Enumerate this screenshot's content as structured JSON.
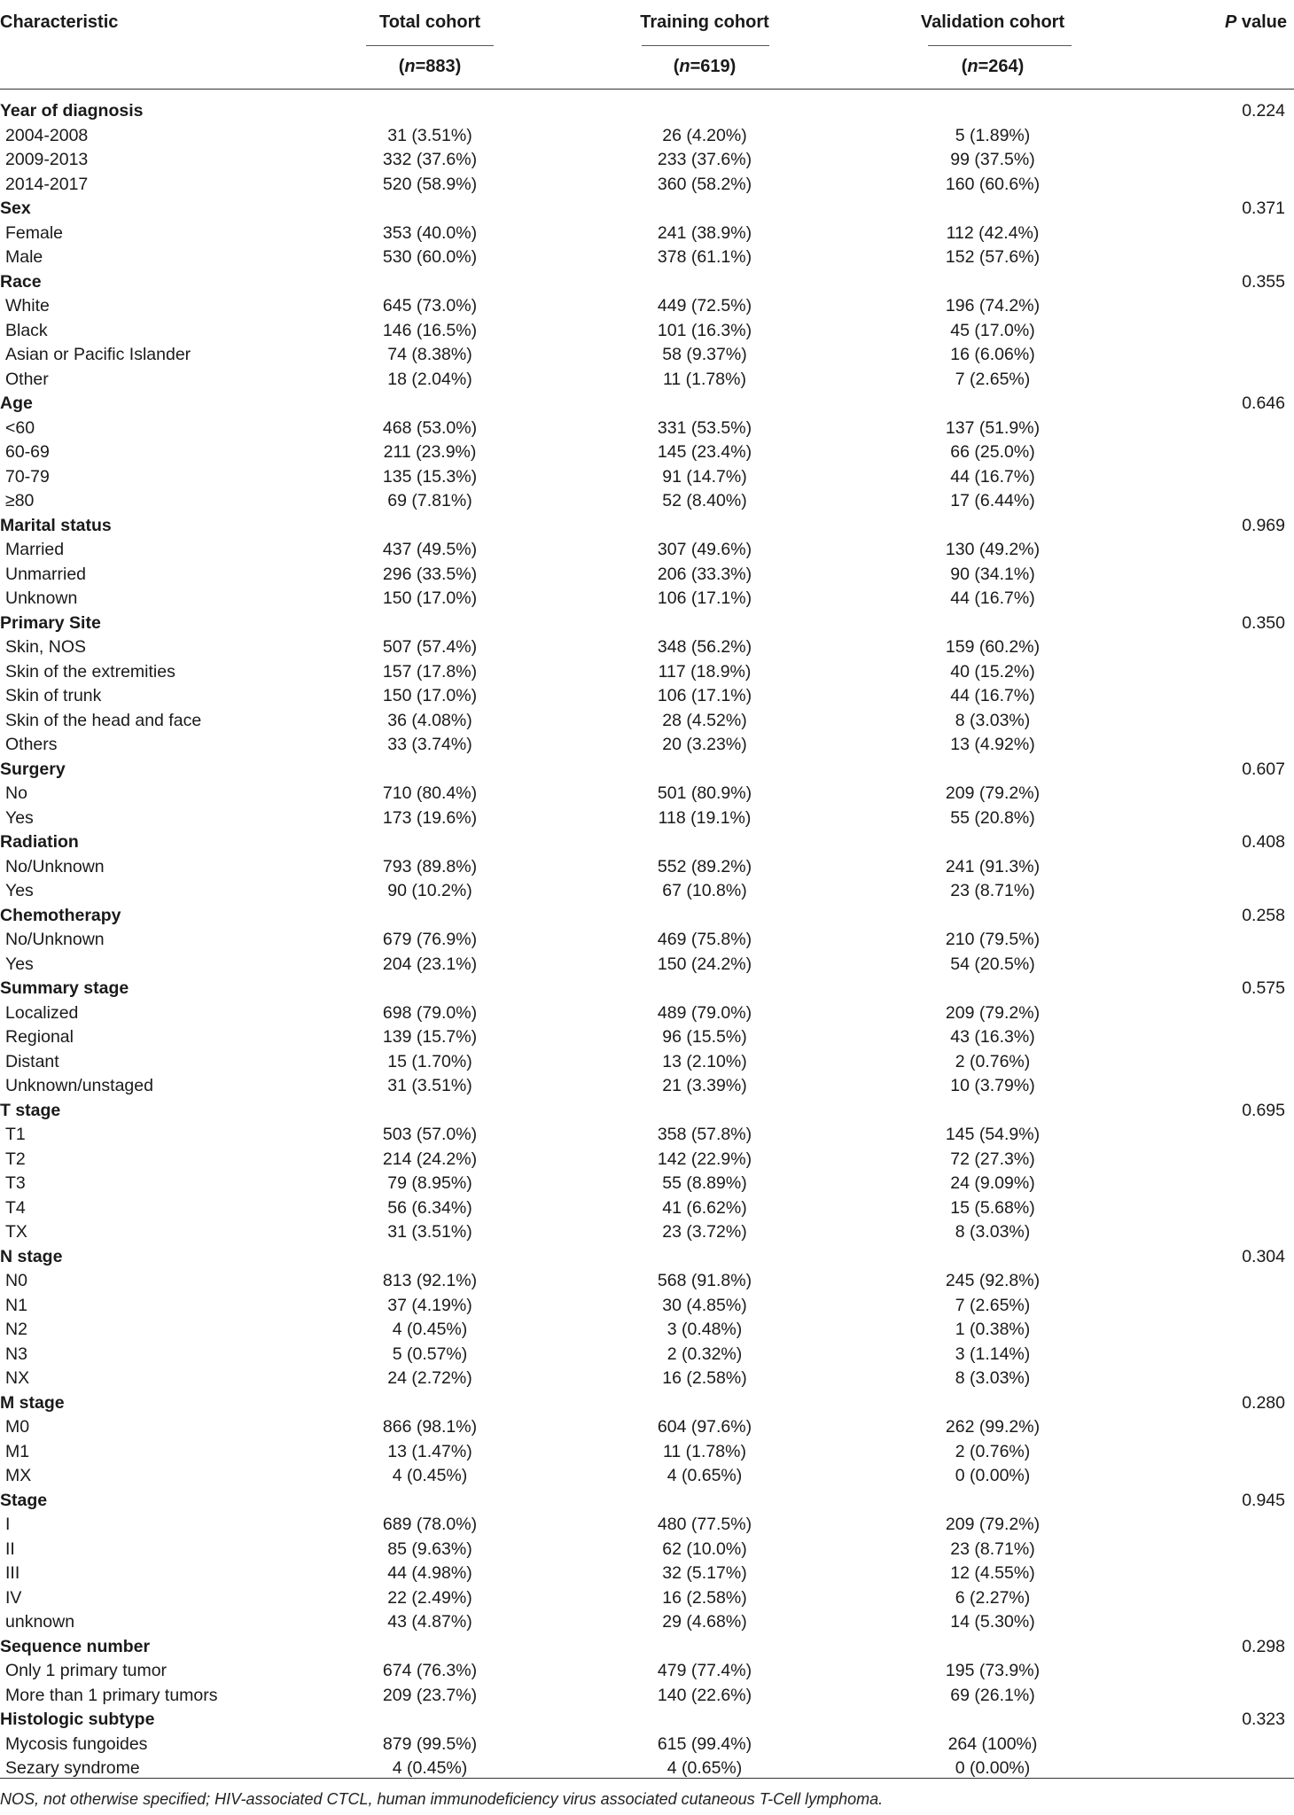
{
  "header": {
    "characteristic": "Characteristic",
    "total": "Total cohort",
    "training": "Training cohort",
    "validation": "Validation cohort",
    "p_italic": "P",
    "p_rest": " value",
    "n_total": "(n=883)",
    "n_training": "(n=619)",
    "n_validation": "(n=264)"
  },
  "rows": [
    {
      "type": "group",
      "label": "Year of diagnosis",
      "p": "0.224"
    },
    {
      "type": "sub",
      "label": "2004-2008",
      "total": "31 (3.51%)",
      "training": "26 (4.20%)",
      "validation": "5 (1.89%)"
    },
    {
      "type": "sub",
      "label": "2009-2013",
      "total": "332 (37.6%)",
      "training": "233 (37.6%)",
      "validation": "99 (37.5%)"
    },
    {
      "type": "sub",
      "label": "2014-2017",
      "total": "520 (58.9%)",
      "training": "360 (58.2%)",
      "validation": "160 (60.6%)"
    },
    {
      "type": "group",
      "label": "Sex",
      "p": "0.371"
    },
    {
      "type": "sub",
      "label": "Female",
      "total": "353 (40.0%)",
      "training": "241 (38.9%)",
      "validation": "112 (42.4%)"
    },
    {
      "type": "sub",
      "label": "Male",
      "total": "530 (60.0%)",
      "training": "378 (61.1%)",
      "validation": "152 (57.6%)"
    },
    {
      "type": "group",
      "label": "Race",
      "p": "0.355"
    },
    {
      "type": "sub",
      "label": "White",
      "total": "645 (73.0%)",
      "training": "449 (72.5%)",
      "validation": "196 (74.2%)"
    },
    {
      "type": "sub",
      "label": "Black",
      "total": "146 (16.5%)",
      "training": "101 (16.3%)",
      "validation": "45 (17.0%)"
    },
    {
      "type": "sub",
      "label": "Asian or Pacific Islander",
      "total": "74 (8.38%)",
      "training": "58 (9.37%)",
      "validation": "16 (6.06%)"
    },
    {
      "type": "sub",
      "label": "Other",
      "total": "18 (2.04%)",
      "training": "11 (1.78%)",
      "validation": "7 (2.65%)"
    },
    {
      "type": "group",
      "label": "Age",
      "p": "0.646"
    },
    {
      "type": "sub",
      "label": "<60",
      "total": "468 (53.0%)",
      "training": "331 (53.5%)",
      "validation": "137 (51.9%)"
    },
    {
      "type": "sub",
      "label": "60-69",
      "total": "211 (23.9%)",
      "training": "145 (23.4%)",
      "validation": "66 (25.0%)"
    },
    {
      "type": "sub",
      "label": "70-79",
      "total": "135 (15.3%)",
      "training": "91 (14.7%)",
      "validation": "44 (16.7%)"
    },
    {
      "type": "sub",
      "label": "≥80",
      "total": "69 (7.81%)",
      "training": "52 (8.40%)",
      "validation": "17 (6.44%)"
    },
    {
      "type": "group",
      "label": "Marital status",
      "p": "0.969"
    },
    {
      "type": "sub",
      "label": "Married",
      "total": "437 (49.5%)",
      "training": "307 (49.6%)",
      "validation": "130 (49.2%)"
    },
    {
      "type": "sub",
      "label": "Unmarried",
      "total": "296 (33.5%)",
      "training": "206 (33.3%)",
      "validation": "90 (34.1%)"
    },
    {
      "type": "sub",
      "label": "Unknown",
      "total": "150 (17.0%)",
      "training": "106 (17.1%)",
      "validation": "44 (16.7%)"
    },
    {
      "type": "group",
      "label": "Primary Site",
      "p": "0.350"
    },
    {
      "type": "sub",
      "label": "Skin, NOS",
      "total": "507 (57.4%)",
      "training": "348 (56.2%)",
      "validation": "159 (60.2%)"
    },
    {
      "type": "sub",
      "label": "Skin of the extremities",
      "total": "157 (17.8%)",
      "training": "117 (18.9%)",
      "validation": "40 (15.2%)"
    },
    {
      "type": "sub",
      "label": "Skin of trunk",
      "total": "150 (17.0%)",
      "training": "106 (17.1%)",
      "validation": "44 (16.7%)"
    },
    {
      "type": "sub",
      "label": "Skin of the head and face",
      "total": "36 (4.08%)",
      "training": "28 (4.52%)",
      "validation": "8 (3.03%)"
    },
    {
      "type": "sub",
      "label": "Others",
      "total": "33 (3.74%)",
      "training": "20 (3.23%)",
      "validation": "13 (4.92%)"
    },
    {
      "type": "group",
      "label": "Surgery",
      "p": "0.607"
    },
    {
      "type": "sub",
      "label": "No",
      "total": "710 (80.4%)",
      "training": "501 (80.9%)",
      "validation": "209 (79.2%)"
    },
    {
      "type": "sub",
      "label": "Yes",
      "total": "173 (19.6%)",
      "training": "118 (19.1%)",
      "validation": "55 (20.8%)"
    },
    {
      "type": "group",
      "label": "Radiation",
      "p": "0.408"
    },
    {
      "type": "sub",
      "label": "No/Unknown",
      "total": "793 (89.8%)",
      "training": "552 (89.2%)",
      "validation": "241 (91.3%)"
    },
    {
      "type": "sub",
      "label": "Yes",
      "total": "90 (10.2%)",
      "training": "67 (10.8%)",
      "validation": "23 (8.71%)"
    },
    {
      "type": "group",
      "label": "Chemotherapy",
      "p": "0.258"
    },
    {
      "type": "sub",
      "label": "No/Unknown",
      "total": "679 (76.9%)",
      "training": "469 (75.8%)",
      "validation": "210 (79.5%)"
    },
    {
      "type": "sub",
      "label": "Yes",
      "total": "204 (23.1%)",
      "training": "150 (24.2%)",
      "validation": "54 (20.5%)"
    },
    {
      "type": "group",
      "label": "Summary stage",
      "p": "0.575"
    },
    {
      "type": "sub",
      "label": "Localized",
      "total": "698 (79.0%)",
      "training": "489 (79.0%)",
      "validation": "209 (79.2%)"
    },
    {
      "type": "sub",
      "label": "Regional",
      "total": "139 (15.7%)",
      "training": "96 (15.5%)",
      "validation": "43 (16.3%)"
    },
    {
      "type": "sub",
      "label": "Distant",
      "total": "15 (1.70%)",
      "training": "13 (2.10%)",
      "validation": "2 (0.76%)"
    },
    {
      "type": "sub",
      "label": "Unknown/unstaged",
      "total": "31 (3.51%)",
      "training": "21 (3.39%)",
      "validation": "10 (3.79%)"
    },
    {
      "type": "group",
      "label": "T stage",
      "p": "0.695"
    },
    {
      "type": "sub",
      "label": "T1",
      "total": "503 (57.0%)",
      "training": "358 (57.8%)",
      "validation": "145 (54.9%)"
    },
    {
      "type": "sub",
      "label": "T2",
      "total": "214 (24.2%)",
      "training": "142 (22.9%)",
      "validation": "72 (27.3%)"
    },
    {
      "type": "sub",
      "label": "T3",
      "total": "79 (8.95%)",
      "training": "55 (8.89%)",
      "validation": "24 (9.09%)"
    },
    {
      "type": "sub",
      "label": "T4",
      "total": "56 (6.34%)",
      "training": "41 (6.62%)",
      "validation": "15 (5.68%)"
    },
    {
      "type": "sub",
      "label": "TX",
      "total": "31 (3.51%)",
      "training": "23 (3.72%)",
      "validation": "8 (3.03%)"
    },
    {
      "type": "group",
      "label": "N stage",
      "p": "0.304"
    },
    {
      "type": "sub",
      "label": "N0",
      "total": "813 (92.1%)",
      "training": "568 (91.8%)",
      "validation": "245 (92.8%)"
    },
    {
      "type": "sub",
      "label": "N1",
      "total": "37 (4.19%)",
      "training": "30 (4.85%)",
      "validation": "7 (2.65%)"
    },
    {
      "type": "sub",
      "label": "N2",
      "total": "4 (0.45%)",
      "training": "3 (0.48%)",
      "validation": "1 (0.38%)"
    },
    {
      "type": "sub",
      "label": "N3",
      "total": "5 (0.57%)",
      "training": "2 (0.32%)",
      "validation": "3 (1.14%)"
    },
    {
      "type": "sub",
      "label": "NX",
      "total": "24 (2.72%)",
      "training": "16 (2.58%)",
      "validation": "8 (3.03%)"
    },
    {
      "type": "group",
      "label": "M stage",
      "p": "0.280"
    },
    {
      "type": "sub",
      "label": "M0",
      "total": "866 (98.1%)",
      "training": "604 (97.6%)",
      "validation": "262 (99.2%)"
    },
    {
      "type": "sub",
      "label": "M1",
      "total": "13 (1.47%)",
      "training": "11 (1.78%)",
      "validation": "2 (0.76%)"
    },
    {
      "type": "sub",
      "label": "MX",
      "total": "4 (0.45%)",
      "training": "4 (0.65%)",
      "validation": "0 (0.00%)"
    },
    {
      "type": "group",
      "label": "Stage",
      "p": "0.945"
    },
    {
      "type": "sub",
      "label": "I",
      "total": "689 (78.0%)",
      "training": "480 (77.5%)",
      "validation": "209 (79.2%)"
    },
    {
      "type": "sub",
      "label": "II",
      "total": "85 (9.63%)",
      "training": "62 (10.0%)",
      "validation": "23 (8.71%)"
    },
    {
      "type": "sub",
      "label": "III",
      "total": "44 (4.98%)",
      "training": "32 (5.17%)",
      "validation": "12 (4.55%)"
    },
    {
      "type": "sub",
      "label": "IV",
      "total": "22 (2.49%)",
      "training": "16 (2.58%)",
      "validation": "6 (2.27%)"
    },
    {
      "type": "sub",
      "label": "unknown",
      "total": "43 (4.87%)",
      "training": "29 (4.68%)",
      "validation": "14 (5.30%)"
    },
    {
      "type": "group",
      "label": "Sequence number",
      "p": "0.298"
    },
    {
      "type": "sub",
      "label": "Only 1 primary tumor",
      "total": "674 (76.3%)",
      "training": "479 (77.4%)",
      "validation": "195 (73.9%)"
    },
    {
      "type": "sub",
      "label": "More than 1 primary tumors",
      "total": "209 (23.7%)",
      "training": "140 (22.6%)",
      "validation": "69 (26.1%)"
    },
    {
      "type": "group",
      "label": "Histologic subtype",
      "p": "0.323"
    },
    {
      "type": "sub",
      "label": "Mycosis fungoides",
      "total": "879 (99.5%)",
      "training": "615 (99.4%)",
      "validation": "264 (100%)"
    },
    {
      "type": "sub",
      "label": "Sezary syndrome",
      "total": "4 (0.45%)",
      "training": "4 (0.65%)",
      "validation": "0 (0.00%)"
    }
  ],
  "footnote": "NOS, not otherwise specified; HIV-associated CTCL, human immunodeficiency virus associated cutaneous T-Cell lymphoma."
}
